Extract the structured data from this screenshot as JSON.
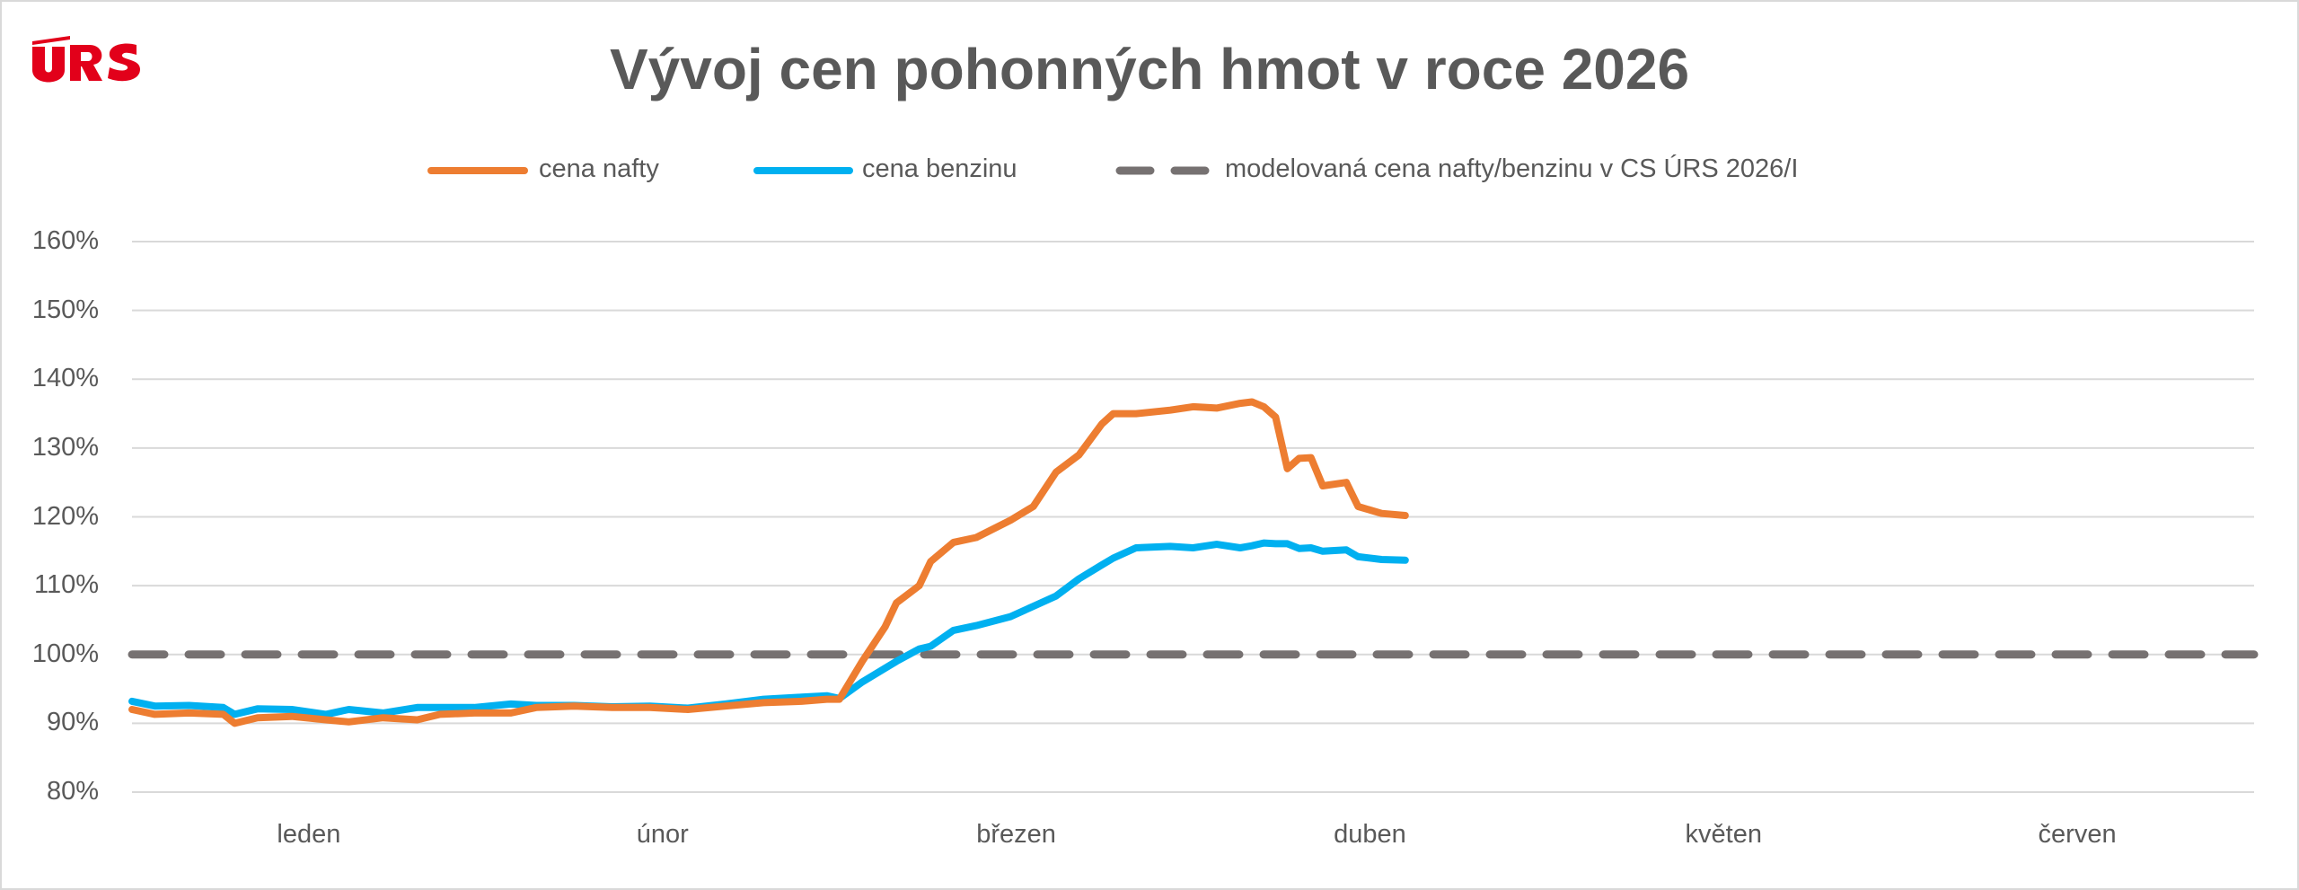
{
  "logo_text": "ÚRS",
  "colors": {
    "nafta": "#ED7D31",
    "benzin": "#00B0F0",
    "model": "#767171",
    "grid": "#d9d9d9",
    "logo": "#E2001A"
  },
  "chart_data": {
    "type": "line",
    "title": "Vývoj cen pohonných hmot v roce 2026",
    "x_categories": [
      "leden",
      "únor",
      "březen",
      "duben",
      "květen",
      "červen"
    ],
    "y_ticks": [
      "80%",
      "90%",
      "100%",
      "110%",
      "120%",
      "130%",
      "140%",
      "150%",
      "160%"
    ],
    "ylim": [
      80,
      160
    ],
    "y_unit": "%",
    "grid": true,
    "legend_position": "top",
    "legend": [
      "cena nafty",
      "cena benzinu",
      "modelovaná cena nafty/benzinu v CS ÚRS 2026/I"
    ],
    "series": [
      {
        "name": "cena nafty",
        "color": "#ED7D31",
        "style": "solid",
        "dates": [
          "2026-01-01",
          "2026-01-03",
          "2026-01-06",
          "2026-01-09",
          "2026-01-10",
          "2026-01-12",
          "2026-01-15",
          "2026-01-18",
          "2026-01-20",
          "2026-01-23",
          "2026-01-26",
          "2026-01-28",
          "2026-01-31",
          "2026-02-03",
          "2026-02-05",
          "2026-02-08",
          "2026-02-11",
          "2026-02-14",
          "2026-02-17",
          "2026-02-20",
          "2026-02-23",
          "2026-02-26",
          "2026-02-28",
          "2026-03-01",
          "2026-03-03",
          "2026-03-05",
          "2026-03-06",
          "2026-03-08",
          "2026-03-09",
          "2026-03-11",
          "2026-03-13",
          "2026-03-16",
          "2026-03-18",
          "2026-03-20",
          "2026-03-22",
          "2026-03-24",
          "2026-03-25",
          "2026-03-27",
          "2026-03-30",
          "2026-04-01",
          "2026-04-03",
          "2026-04-05",
          "2026-04-06",
          "2026-04-07",
          "2026-04-08",
          "2026-04-09",
          "2026-04-10",
          "2026-04-11",
          "2026-04-12",
          "2026-04-14",
          "2026-04-15",
          "2026-04-17",
          "2026-04-19"
        ],
        "values": [
          92,
          91.3,
          91.5,
          91.3,
          90,
          90.8,
          91,
          90.5,
          90.2,
          90.8,
          90.5,
          91.3,
          91.5,
          91.5,
          92.3,
          92.5,
          92.3,
          92.3,
          92,
          92.5,
          93,
          93.2,
          93.5,
          93.5,
          99,
          104,
          107.5,
          110,
          113.5,
          116.3,
          117,
          119.5,
          121.5,
          126.5,
          129,
          133.5,
          135,
          135,
          135.5,
          136,
          135.8,
          136.5,
          136.7,
          136,
          134.5,
          127,
          128.5,
          128.6,
          124.5,
          125,
          121.5,
          120.5,
          120.2
        ]
      },
      {
        "name": "cena benzinu",
        "color": "#00B0F0",
        "style": "solid",
        "dates": [
          "2026-01-01",
          "2026-01-03",
          "2026-01-06",
          "2026-01-09",
          "2026-01-10",
          "2026-01-12",
          "2026-01-15",
          "2026-01-18",
          "2026-01-20",
          "2026-01-23",
          "2026-01-26",
          "2026-01-28",
          "2026-01-31",
          "2026-02-03",
          "2026-02-05",
          "2026-02-08",
          "2026-02-11",
          "2026-02-14",
          "2026-02-17",
          "2026-02-20",
          "2026-02-23",
          "2026-02-26",
          "2026-02-28",
          "2026-03-01",
          "2026-03-03",
          "2026-03-05",
          "2026-03-06",
          "2026-03-08",
          "2026-03-09",
          "2026-03-11",
          "2026-03-13",
          "2026-03-16",
          "2026-03-18",
          "2026-03-20",
          "2026-03-22",
          "2026-03-24",
          "2026-03-25",
          "2026-03-27",
          "2026-03-30",
          "2026-04-01",
          "2026-04-03",
          "2026-04-05",
          "2026-04-06",
          "2026-04-07",
          "2026-04-08",
          "2026-04-09",
          "2026-04-10",
          "2026-04-11",
          "2026-04-12",
          "2026-04-14",
          "2026-04-15",
          "2026-04-17",
          "2026-04-19"
        ],
        "values": [
          93.2,
          92.5,
          92.6,
          92.3,
          91.3,
          92.1,
          92,
          91.3,
          92,
          91.5,
          92.3,
          92.3,
          92.3,
          92.8,
          92.6,
          92.6,
          92.4,
          92.5,
          92.2,
          92.8,
          93.5,
          93.8,
          94,
          93.6,
          96,
          98,
          99,
          100.8,
          101.2,
          103.5,
          104.2,
          105.5,
          107,
          108.5,
          111,
          113,
          114,
          115.5,
          115.7,
          115.5,
          116,
          115.5,
          115.8,
          116.2,
          116.1,
          116.1,
          115.4,
          115.5,
          115,
          115.2,
          114.2,
          113.8,
          113.7
        ]
      },
      {
        "name": "modelovaná cena nafty/benzinu v CS ÚRS 2026/I",
        "color": "#767171",
        "style": "dashed",
        "constant_value": 100
      }
    ]
  }
}
